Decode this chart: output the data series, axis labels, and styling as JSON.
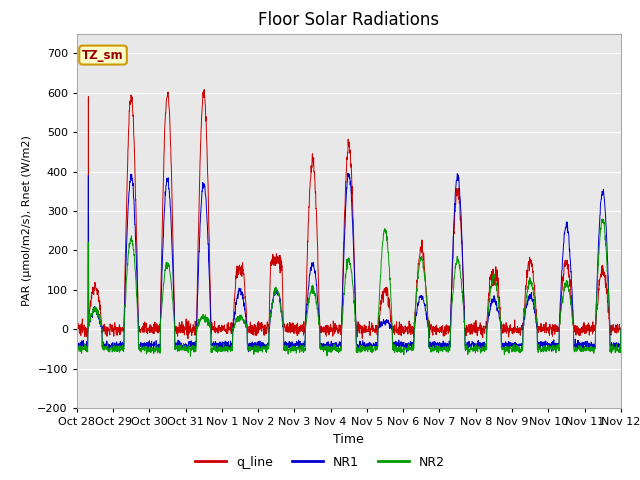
{
  "title": "Floor Solar Radiations",
  "xlabel": "Time",
  "ylabel": "PAR (μmol/m2/s), Rnet (W/m2)",
  "ylim": [
    -200,
    750
  ],
  "yticks": [
    -200,
    -100,
    0,
    100,
    200,
    300,
    400,
    500,
    600,
    700
  ],
  "xtick_labels": [
    "Oct 28",
    "Oct 29",
    "Oct 30",
    "Oct 31",
    "Nov 1",
    "Nov 2",
    "Nov 3",
    "Nov 4",
    "Nov 5",
    "Nov 6",
    "Nov 7",
    "Nov 8",
    "Nov 9",
    "Nov 10",
    "Nov 11",
    "Nov 12"
  ],
  "legend_label": "TZ_sm",
  "line_labels": [
    "q_line",
    "NR1",
    "NR2"
  ],
  "line_colors": [
    "#cc0000",
    "#0000cc",
    "#009900"
  ],
  "bg_color": "#e8e8e8",
  "title_fontsize": 12,
  "figsize": [
    6.4,
    4.8
  ],
  "dpi": 100
}
